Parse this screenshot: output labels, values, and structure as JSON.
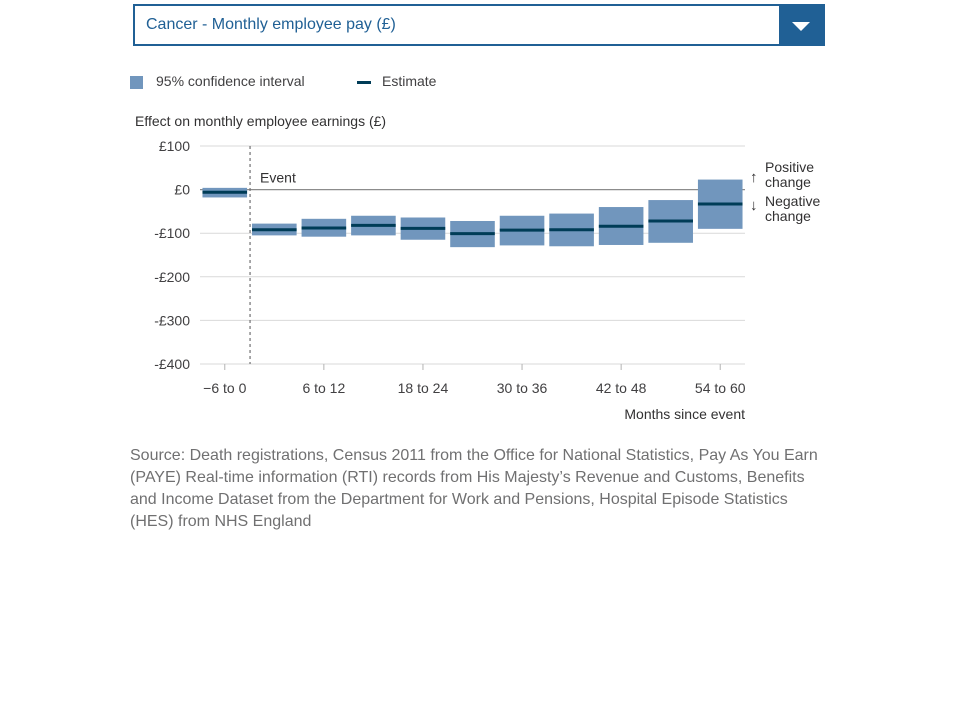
{
  "selector": {
    "label": "Cancer - Monthly employee pay (£)"
  },
  "legend": {
    "ci_label": "95% confidence interval",
    "estimate_label": "Estimate"
  },
  "annotations": {
    "event": "Event",
    "positive_line1": "Positive",
    "positive_line2": "change",
    "negative_line1": "Negative",
    "negative_line2": "change"
  },
  "colors": {
    "accent": "#206095",
    "ci_fill": "#7196bd",
    "estimate": "#003c57",
    "grid": "#d9d9d9",
    "zero_line": "#8c8c8c"
  },
  "chart_data": {
    "type": "bar",
    "title": "",
    "ylabel": "Effect on monthly employee earnings (£)",
    "xlabel": "Months since event",
    "ylim": [
      -400,
      100
    ],
    "yticks": [
      100,
      0,
      -100,
      -200,
      -300,
      -400
    ],
    "ytick_labels": [
      "£100",
      "£0",
      "-£100",
      "-£200",
      "-£300",
      "-£400"
    ],
    "grid": true,
    "legend_position": "top-left",
    "event_after_category": "−6 to 0",
    "categories": [
      "−6 to 0",
      "0 to 6",
      "6 to 12",
      "12 to 18",
      "18 to 24",
      "24 to 30",
      "30 to 36",
      "36 to 42",
      "42 to 48",
      "48 to 54",
      "54 to 60"
    ],
    "shown_tick_labels": [
      "−6 to 0",
      "6 to 12",
      "18 to 24",
      "30 to 36",
      "42 to 48",
      "54 to 60"
    ],
    "series": [
      {
        "name": "Estimate",
        "values": [
          -6,
          -92,
          -88,
          -82,
          -89,
          -101,
          -93,
          -92,
          -84,
          -72,
          -33
        ]
      },
      {
        "name": "95% confidence interval",
        "lower": [
          -18,
          -105,
          -108,
          -105,
          -115,
          -132,
          -128,
          -130,
          -127,
          -122,
          -90
        ],
        "upper": [
          4,
          -78,
          -67,
          -60,
          -64,
          -72,
          -60,
          -55,
          -40,
          -24,
          23
        ]
      }
    ]
  },
  "source": "Source: Death registrations, Census 2011 from the Office for National Statistics, Pay As You Earn (PAYE) Real-time information (RTI) records from His Majesty’s Revenue and Customs, Benefits and Income Dataset from the Department for Work and Pensions, Hospital Episode Statistics (HES) from NHS England"
}
